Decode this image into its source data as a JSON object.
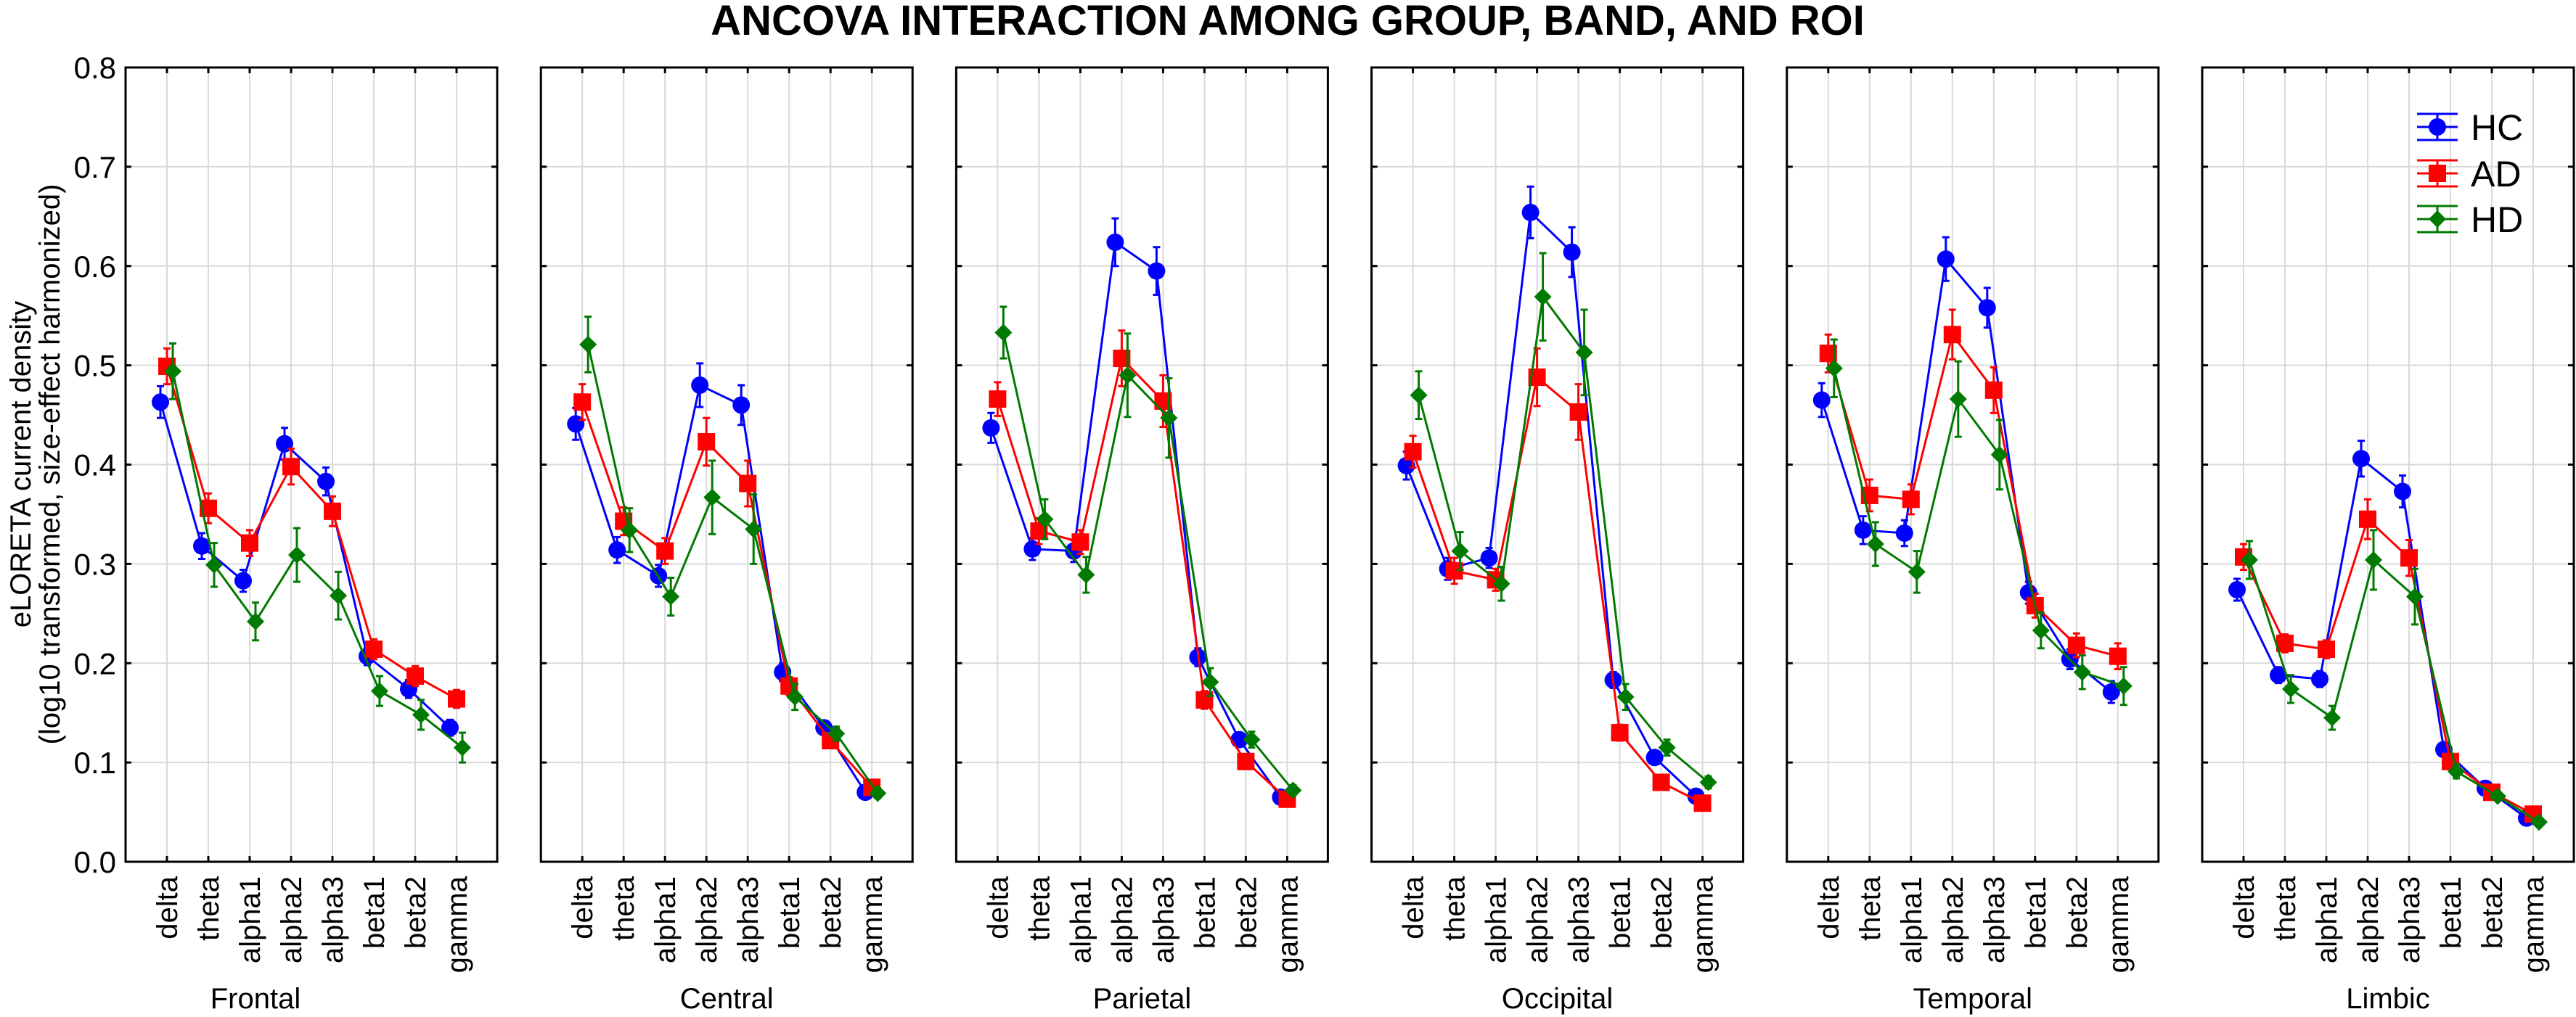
{
  "chart_data": {
    "type": "line",
    "title": "ANCOVA INTERACTION AMONG GROUP, BAND, AND ROI",
    "ylabel_lines": [
      "eLORETA current density",
      "(log10 transformed, size-effect harmonized)"
    ],
    "ylim": [
      0.0,
      0.8
    ],
    "yticks": [
      "0.0",
      "0.1",
      "0.2",
      "0.3",
      "0.4",
      "0.5",
      "0.6",
      "0.7",
      "0.8"
    ],
    "ytick_values": [
      0.0,
      0.1,
      0.2,
      0.3,
      0.4,
      0.5,
      0.6,
      0.7,
      0.8
    ],
    "grid": true,
    "legend_position": "top-right",
    "categories": [
      "delta",
      "theta",
      "alpha1",
      "alpha2",
      "alpha3",
      "beta1",
      "beta2",
      "gamma"
    ],
    "legend": [
      {
        "name": "HC",
        "color": "#0000ff",
        "marker": "circle"
      },
      {
        "name": "AD",
        "color": "#ff0000",
        "marker": "square"
      },
      {
        "name": "HD",
        "color": "#007a00",
        "marker": "diamond"
      }
    ],
    "panels": [
      {
        "region": "Frontal",
        "series": [
          {
            "name": "HC",
            "values": [
              0.463,
              0.318,
              0.283,
              0.421,
              0.383,
              0.207,
              0.174,
              0.135
            ],
            "errors": [
              0.016,
              0.013,
              0.011,
              0.016,
              0.014,
              0.009,
              0.009,
              0.008
            ]
          },
          {
            "name": "AD",
            "values": [
              0.499,
              0.356,
              0.321,
              0.398,
              0.353,
              0.214,
              0.187,
              0.164
            ],
            "errors": [
              0.018,
              0.015,
              0.013,
              0.018,
              0.015,
              0.01,
              0.01,
              0.009
            ]
          },
          {
            "name": "HD",
            "values": [
              0.494,
              0.299,
              0.242,
              0.309,
              0.268,
              0.172,
              0.148,
              0.115
            ],
            "errors": [
              0.028,
              0.022,
              0.019,
              0.027,
              0.024,
              0.015,
              0.015,
              0.015
            ]
          }
        ]
      },
      {
        "region": "Central",
        "series": [
          {
            "name": "HC",
            "values": [
              0.441,
              0.314,
              0.288,
              0.48,
              0.46,
              0.191,
              0.135,
              0.07
            ],
            "errors": [
              0.016,
              0.013,
              0.011,
              0.022,
              0.02,
              0.009,
              0.006,
              0.004
            ]
          },
          {
            "name": "AD",
            "values": [
              0.463,
              0.343,
              0.313,
              0.423,
              0.381,
              0.177,
              0.122,
              0.075
            ],
            "errors": [
              0.018,
              0.014,
              0.013,
              0.024,
              0.023,
              0.009,
              0.006,
              0.004
            ]
          },
          {
            "name": "HD",
            "values": [
              0.521,
              0.334,
              0.267,
              0.367,
              0.335,
              0.166,
              0.129,
              0.069
            ],
            "errors": [
              0.028,
              0.022,
              0.019,
              0.037,
              0.035,
              0.013,
              0.007,
              0.005
            ]
          }
        ]
      },
      {
        "region": "Parietal",
        "series": [
          {
            "name": "HC",
            "values": [
              0.437,
              0.315,
              0.313,
              0.624,
              0.595,
              0.206,
              0.123,
              0.065
            ],
            "errors": [
              0.015,
              0.011,
              0.011,
              0.024,
              0.024,
              0.009,
              0.006,
              0.004
            ]
          },
          {
            "name": "AD",
            "values": [
              0.466,
              0.333,
              0.322,
              0.507,
              0.464,
              0.163,
              0.101,
              0.063
            ],
            "errors": [
              0.017,
              0.013,
              0.012,
              0.028,
              0.026,
              0.009,
              0.005,
              0.004
            ]
          },
          {
            "name": "HD",
            "values": [
              0.533,
              0.345,
              0.289,
              0.49,
              0.447,
              0.181,
              0.123,
              0.072
            ],
            "errors": [
              0.026,
              0.02,
              0.018,
              0.042,
              0.04,
              0.014,
              0.008,
              0.005
            ]
          }
        ]
      },
      {
        "region": "Occipital",
        "series": [
          {
            "name": "HC",
            "values": [
              0.399,
              0.295,
              0.306,
              0.654,
              0.614,
              0.183,
              0.105,
              0.066
            ],
            "errors": [
              0.014,
              0.011,
              0.01,
              0.026,
              0.025,
              0.008,
              0.005,
              0.004
            ]
          },
          {
            "name": "AD",
            "values": [
              0.413,
              0.293,
              0.284,
              0.488,
              0.453,
              0.13,
              0.08,
              0.059
            ],
            "errors": [
              0.016,
              0.013,
              0.011,
              0.029,
              0.028,
              0.008,
              0.005,
              0.004
            ]
          },
          {
            "name": "HD",
            "values": [
              0.47,
              0.313,
              0.28,
              0.569,
              0.513,
              0.166,
              0.115,
              0.08
            ],
            "errors": [
              0.024,
              0.019,
              0.017,
              0.044,
              0.043,
              0.013,
              0.008,
              0.006
            ]
          }
        ]
      },
      {
        "region": "Temporal",
        "series": [
          {
            "name": "HC",
            "values": [
              0.465,
              0.334,
              0.331,
              0.607,
              0.558,
              0.271,
              0.204,
              0.171
            ],
            "errors": [
              0.017,
              0.014,
              0.013,
              0.022,
              0.02,
              0.011,
              0.01,
              0.011
            ]
          },
          {
            "name": "AD",
            "values": [
              0.512,
              0.369,
              0.365,
              0.531,
              0.475,
              0.258,
              0.218,
              0.207
            ],
            "errors": [
              0.019,
              0.016,
              0.015,
              0.025,
              0.023,
              0.012,
              0.012,
              0.013
            ]
          },
          {
            "name": "HD",
            "values": [
              0.497,
              0.32,
              0.292,
              0.466,
              0.41,
              0.233,
              0.191,
              0.177
            ],
            "errors": [
              0.029,
              0.022,
              0.021,
              0.038,
              0.035,
              0.018,
              0.017,
              0.019
            ]
          }
        ]
      },
      {
        "region": "Limbic",
        "series": [
          {
            "name": "HC",
            "values": [
              0.274,
              0.188,
              0.184,
              0.406,
              0.373,
              0.113,
              0.074,
              0.044
            ],
            "errors": [
              0.011,
              0.008,
              0.008,
              0.018,
              0.016,
              0.004,
              0.003,
              0.002
            ]
          },
          {
            "name": "AD",
            "values": [
              0.307,
              0.22,
              0.214,
              0.345,
              0.306,
              0.101,
              0.07,
              0.048
            ],
            "errors": [
              0.013,
              0.009,
              0.009,
              0.02,
              0.018,
              0.005,
              0.003,
              0.002
            ]
          },
          {
            "name": "HD",
            "values": [
              0.304,
              0.174,
              0.145,
              0.304,
              0.267,
              0.091,
              0.066,
              0.04
            ],
            "errors": [
              0.019,
              0.014,
              0.012,
              0.03,
              0.028,
              0.007,
              0.004,
              0.003
            ]
          }
        ]
      }
    ]
  }
}
